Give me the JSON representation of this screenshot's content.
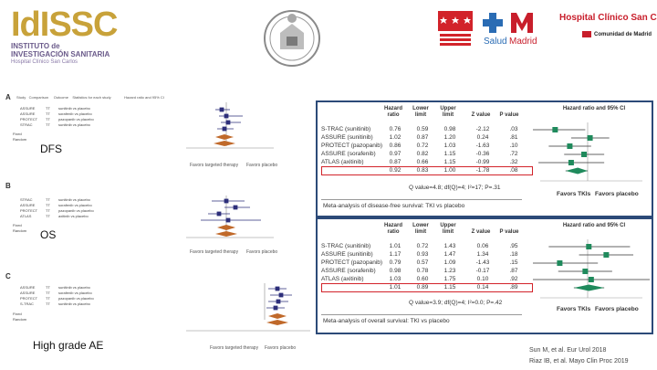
{
  "logos": {
    "left_main": "IdISSC",
    "left_line1": "INSTITUTO de",
    "left_line2": "INVESTIGACIÓN SANITARIA",
    "left_line3": "Hospital Clínico San Carlos",
    "hospital_name": "Hospital Clínico San Carlos",
    "comunidad": "Comunidad de Madrid",
    "salud_a": "Salud",
    "salud_b": "Madrid"
  },
  "left": {
    "labels": {
      "dfs": "DFS",
      "os": "OS",
      "hg": "High grade AE"
    },
    "section_letters": [
      "A",
      "B",
      "C"
    ],
    "favors_a": "Favors targeted therapy",
    "favors_b": "Favors placebo",
    "header_cols": [
      "Study",
      "Comparison",
      "Outcome",
      "Statistics for each study",
      "Hazard ratio and 95% CI"
    ],
    "rows_a": [
      {
        "study": "ASSURE",
        "cmp": "TT",
        "drug": "sunitinib vs placebo"
      },
      {
        "study": "ASSURE",
        "cmp": "TT",
        "drug": "sorafenib vs placebo"
      },
      {
        "study": "PROTECT",
        "cmp": "TT",
        "drug": "pazopanib vs placebo"
      },
      {
        "study": "STRAC",
        "cmp": "TT",
        "drug": "sunitinib vs placebo"
      }
    ],
    "rows_b": [
      {
        "study": "STRAC",
        "cmp": "TT",
        "drug": "sunitinib vs placebo"
      },
      {
        "study": "ASSURE",
        "cmp": "TT",
        "drug": "sorafenib vs placebo"
      },
      {
        "study": "PROTECT",
        "cmp": "TT",
        "drug": "pazopanib vs placebo"
      },
      {
        "study": "ATLAS",
        "cmp": "TT",
        "drug": "axitinib vs placebo"
      }
    ],
    "rows_c": [
      {
        "study": "ASSURE",
        "cmp": "TT",
        "drug": "sunitinib vs placebo"
      },
      {
        "study": "ASSURE",
        "cmp": "TT",
        "drug": "sorafenib vs placebo"
      },
      {
        "study": "PROTECT",
        "cmp": "TT",
        "drug": "pazopanib vs placebo"
      },
      {
        "study": "S-TRAC",
        "cmp": "TT",
        "drug": "sunitinib vs placebo"
      }
    ],
    "fixed": "Fixed",
    "random": "Random"
  },
  "dfs_table": {
    "headers": [
      "Hazard ratio",
      "Lower limit",
      "Upper limit",
      "Z value",
      "P value",
      "Hazard ratio and 95% CI"
    ],
    "rows": [
      {
        "name": "S-TRAC (sunitinib)",
        "hr": "0.76",
        "lo": "0.59",
        "hi": "0.98",
        "z": "-2.12",
        "p": ".03"
      },
      {
        "name": "ASSURE (sunitinib)",
        "hr": "1.02",
        "lo": "0.87",
        "hi": "1.20",
        "z": "0.24",
        "p": ".81"
      },
      {
        "name": "PROTECT (pazopanib)",
        "hr": "0.86",
        "lo": "0.72",
        "hi": "1.03",
        "z": "-1.63",
        "p": ".10"
      },
      {
        "name": "ASSURE (sorafenib)",
        "hr": "0.97",
        "lo": "0.82",
        "hi": "1.15",
        "z": "-0.36",
        "p": ".72"
      },
      {
        "name": "ATLAS (axitinib)",
        "hr": "0.87",
        "lo": "0.66",
        "hi": "1.15",
        "z": "-0.99",
        "p": ".32"
      },
      {
        "name": "",
        "hr": "0.92",
        "lo": "0.83",
        "hi": "1.00",
        "z": "-1.78",
        "p": ".08"
      }
    ],
    "q_text": "Q value=4.8; df(Q)=4; I²=17; P=.31",
    "favors_l": "Favors TKIs",
    "favors_r": "Favors placebo",
    "caption": "Meta-analysis of disease-free survival: TKI vs placebo"
  },
  "os_table": {
    "headers": [
      "Hazard ratio",
      "Lower limit",
      "Upper limit",
      "Z value",
      "P value",
      "Hazard ratio and 95% CI"
    ],
    "rows": [
      {
        "name": "S-TRAC (sunitinib)",
        "hr": "1.01",
        "lo": "0.72",
        "hi": "1.43",
        "z": "0.06",
        "p": ".95"
      },
      {
        "name": "ASSURE (sunitinib)",
        "hr": "1.17",
        "lo": "0.93",
        "hi": "1.47",
        "z": "1.34",
        "p": ".18"
      },
      {
        "name": "PROTECT (pazopanib)",
        "hr": "0.79",
        "lo": "0.57",
        "hi": "1.09",
        "z": "-1.43",
        "p": ".15"
      },
      {
        "name": "ASSURE (sorafenib)",
        "hr": "0.98",
        "lo": "0.78",
        "hi": "1.23",
        "z": "-0.17",
        "p": ".87"
      },
      {
        "name": "ATLAS (axitinib)",
        "hr": "1.03",
        "lo": "0.60",
        "hi": "1.75",
        "z": "0.10",
        "p": ".92"
      },
      {
        "name": "",
        "hr": "1.01",
        "lo": "0.89",
        "hi": "1.15",
        "z": "0.14",
        "p": ".89"
      }
    ],
    "q_text": "Q value=3.9; df(Q)=4; I²=0.0; P=.42",
    "favors_l": "Favors TKIs",
    "favors_r": "Favors placebo",
    "caption": "Meta-analysis of overall survival: TKI vs placebo"
  },
  "refs": {
    "line1": "Sun M, et al. Eur Urol 2018",
    "line2": "Riaz IB, et al. Mayo Clin Proc 2019"
  },
  "colors": {
    "box_border": "#2c4a78",
    "marker": "#1f8a5c",
    "highlight": "#d2232a",
    "forest_left": "#2d2f7a",
    "diamond": "#c0692a"
  }
}
